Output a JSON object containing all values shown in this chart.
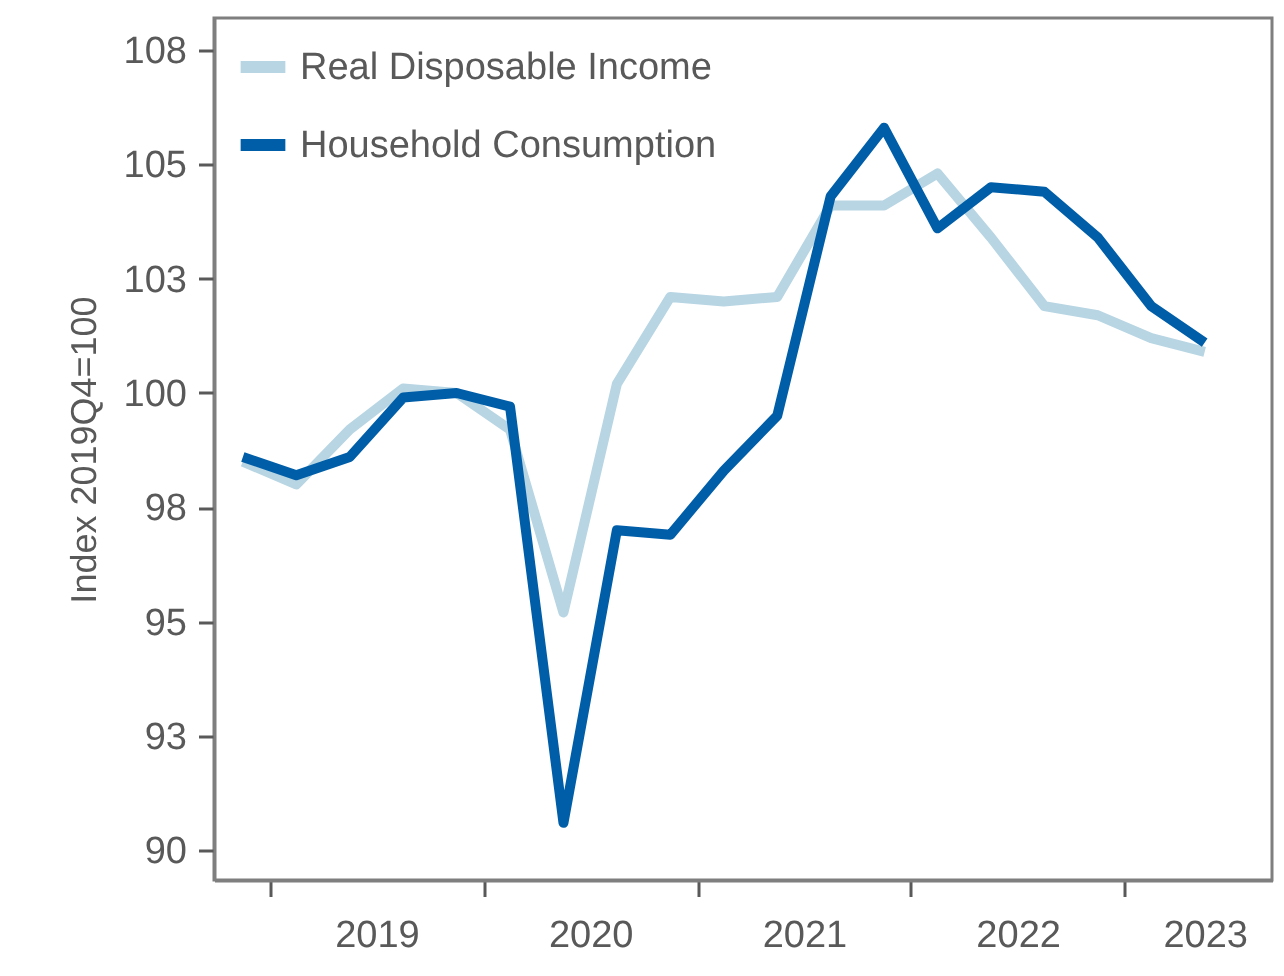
{
  "chart_data": {
    "type": "line",
    "ylabel": "Index 2019Q4=100",
    "x": [
      2018.875,
      2019.125,
      2019.375,
      2019.625,
      2019.875,
      2020.125,
      2020.375,
      2020.625,
      2020.875,
      2021.125,
      2021.375,
      2021.625,
      2021.875,
      2022.125,
      2022.375,
      2022.625,
      2022.875,
      2023.125,
      2023.375
    ],
    "series": [
      {
        "name": "Real Disposable Income",
        "color": "#b7d5e3",
        "values": [
          98.5,
          98.0,
          99.2,
          100.1,
          100.0,
          99.2,
          95.2,
          100.2,
          102.1,
          102.0,
          102.1,
          104.1,
          104.1,
          104.8,
          103.4,
          101.9,
          101.7,
          101.2,
          100.9
        ]
      },
      {
        "name": "Household Consumption",
        "color": "#005ea8",
        "values": [
          98.6,
          98.2,
          98.6,
          99.9,
          100.0,
          99.7,
          90.6,
          97.0,
          96.9,
          98.3,
          99.5,
          104.3,
          105.8,
          103.6,
          104.5,
          104.4,
          103.4,
          101.9,
          101.1
        ]
      }
    ],
    "xlim": [
      2018.74,
      2023.69
    ],
    "xticks": [
      {
        "value": 2019,
        "label": null
      },
      {
        "value": 2020,
        "label": null
      },
      {
        "value": 2021,
        "label": null
      },
      {
        "value": 2022,
        "label": null
      },
      {
        "value": 2023,
        "label": null
      },
      {
        "value": 2019.5,
        "label": "2019"
      },
      {
        "value": 2020.5,
        "label": "2020"
      },
      {
        "value": 2021.5,
        "label": "2021"
      },
      {
        "value": 2022.5,
        "label": "2022"
      },
      {
        "value": 2023.375,
        "label": "2023"
      }
    ],
    "ylim": [
      89.35,
      108.2
    ],
    "yticks": [
      90,
      {
        "value": 92.5,
        "label": "93"
      },
      95,
      {
        "value": 97.5,
        "label": "98"
      },
      100,
      {
        "value": 102.5,
        "label": "103"
      },
      105,
      {
        "value": 107.5,
        "label": "108"
      }
    ],
    "legend": "top left",
    "grid": false,
    "line_style": "solid"
  }
}
